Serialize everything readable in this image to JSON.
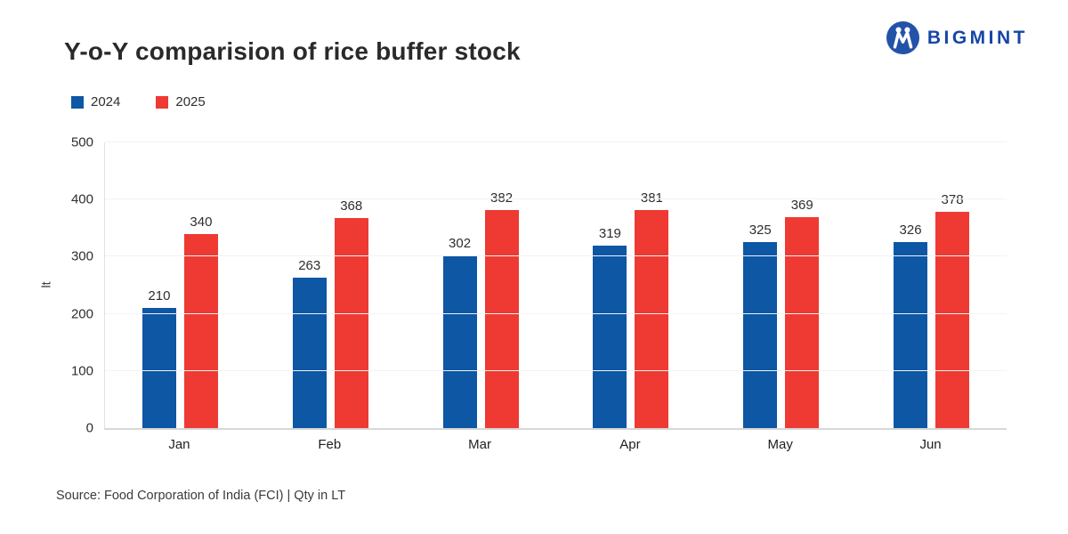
{
  "header": {
    "title": "Y-o-Y comparision of rice buffer stock",
    "brand": {
      "name": "BIGMINT",
      "text_color": "#1745A8",
      "icon_color": "#2353A8"
    }
  },
  "chart_data": {
    "type": "bar",
    "title": "Y-o-Y comparision of rice buffer stock",
    "categories": [
      "Jan",
      "Feb",
      "Mar",
      "Apr",
      "May",
      "Jun"
    ],
    "series": [
      {
        "name": "2024",
        "color": "#0D57A4",
        "values": [
          210,
          263,
          302,
          319,
          325,
          326
        ]
      },
      {
        "name": "2025",
        "color": "#EE3A32",
        "values": [
          340,
          368,
          382,
          381,
          369,
          378
        ]
      }
    ],
    "xlabel": "",
    "ylabel": "lt",
    "ylim": [
      0,
      500
    ],
    "yticks": [
      0,
      100,
      200,
      300,
      400,
      500
    ],
    "grid": true,
    "data_labels": true,
    "legend_position": "top-left"
  },
  "footer": {
    "source": "Source: Food Corporation of India (FCI) | Qty in LT"
  }
}
